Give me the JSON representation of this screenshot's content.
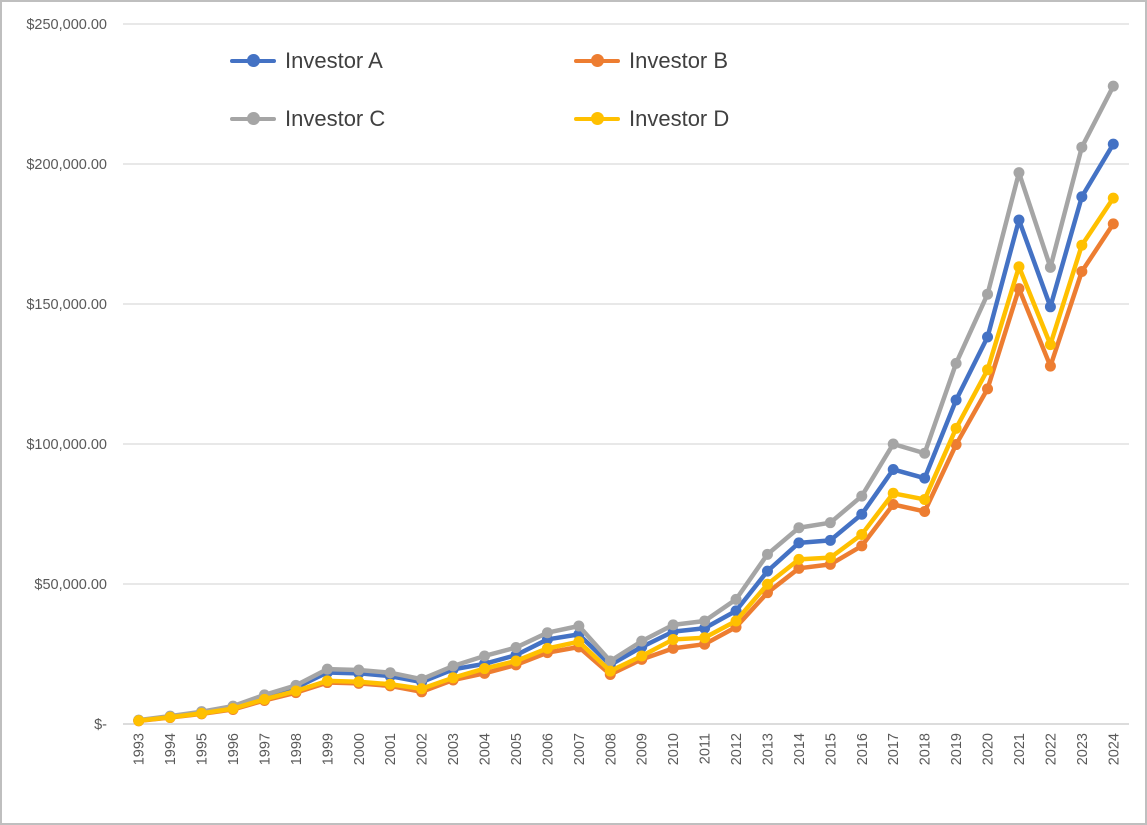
{
  "window": {
    "background": "#ffffff",
    "border_color": "#bfbfbf"
  },
  "chart_data": {
    "type": "line",
    "title": "",
    "xlabel": "",
    "ylabel": "",
    "x": [
      1993,
      1994,
      1995,
      1996,
      1997,
      1998,
      1999,
      2000,
      2001,
      2002,
      2003,
      2004,
      2005,
      2006,
      2007,
      2008,
      2009,
      2010,
      2011,
      2012,
      2013,
      2014,
      2015,
      2016,
      2017,
      2018,
      2019,
      2020,
      2021,
      2022,
      2023,
      2024
    ],
    "series": [
      {
        "name": "Investor A",
        "color": "#4472C4",
        "values": [
          1300,
          2600,
          4100,
          6000,
          9800,
          13000,
          18400,
          18100,
          17100,
          15000,
          19500,
          21500,
          24600,
          30200,
          32000,
          21100,
          27500,
          33000,
          34200,
          40400,
          54600,
          64700,
          65600,
          74900,
          90900,
          87800,
          115700,
          138200,
          180000,
          149000,
          188300,
          207100
        ]
      },
      {
        "name": "Investor B",
        "color": "#ED7D31",
        "values": [
          1100,
          2300,
          3600,
          5200,
          8400,
          11200,
          14800,
          14500,
          13600,
          11500,
          15700,
          18100,
          21100,
          25500,
          27500,
          17700,
          23100,
          27000,
          28500,
          34600,
          46900,
          55600,
          57000,
          63600,
          78400,
          75900,
          99800,
          119700,
          155500,
          127800,
          161600,
          178600
        ]
      },
      {
        "name": "Investor C",
        "color": "#A5A5A5",
        "values": [
          1400,
          2800,
          4400,
          6400,
          10400,
          13800,
          19600,
          19300,
          18300,
          16000,
          20700,
          24300,
          27300,
          32600,
          35000,
          22500,
          29600,
          35400,
          36800,
          44500,
          60600,
          70100,
          71900,
          81400,
          100000,
          96700,
          128800,
          153500,
          196900,
          163100,
          206000,
          227800
        ]
      },
      {
        "name": "Investor D",
        "color": "#FFC000",
        "values": [
          1200,
          2400,
          3800,
          5500,
          8800,
          11800,
          15400,
          15100,
          14200,
          12600,
          16500,
          19800,
          22500,
          27000,
          29400,
          18900,
          24300,
          30200,
          30800,
          36800,
          49900,
          58800,
          59400,
          67700,
          82400,
          80200,
          105600,
          126500,
          163300,
          135500,
          171000,
          187800
        ]
      }
    ],
    "ylim": [
      0,
      250000
    ],
    "y_tick_step": 50000,
    "y_tick_labels": [
      "$-",
      "$50,000.00",
      "$100,000.00",
      "$150,000.00",
      "$200,000.00",
      "$250,000.00"
    ],
    "grid": "horizontal",
    "gridline_color": "#D9D9D9",
    "axis_line_color": "#C8C8C8",
    "axis_label_color": "#595959",
    "legend_position": "top-inside",
    "legend_text_color": "#404040"
  }
}
